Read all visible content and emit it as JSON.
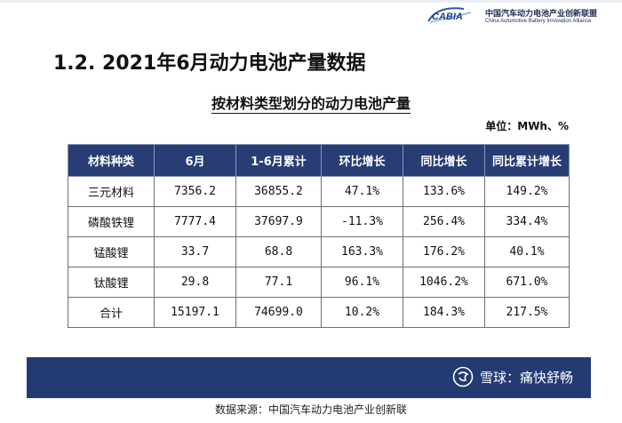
{
  "logo": {
    "mark": "CABIA",
    "cn": "中国汽车动力电池产业创新联盟",
    "en": "China Automotive Battery Innovation Alliance"
  },
  "heading": "1.2.  2021年6月动力电池产量数据",
  "subtitle": "按材料类型划分的动力电池产量",
  "unit": "单位：MWh、%",
  "table": {
    "headers": [
      "材料种类",
      "6月",
      "1-6月累计",
      "环比增长",
      "同比增长",
      "同比累计增长"
    ],
    "rows": [
      [
        "三元材料",
        "7356.2",
        "36855.2",
        "47.1%",
        "133.6%",
        "149.2%"
      ],
      [
        "磷酸铁锂",
        "7777.4",
        "37697.9",
        "-11.3%",
        "256.4%",
        "334.4%"
      ],
      [
        "锰酸锂",
        "33.7",
        "68.8",
        "163.3%",
        "176.2%",
        "40.1%"
      ],
      [
        "钛酸锂",
        "29.8",
        "77.1",
        "96.1%",
        "1046.2%",
        "671.0%"
      ],
      [
        "合计",
        "15197.1",
        "74699.0",
        "10.2%",
        "184.3%",
        "217.5%"
      ]
    ]
  },
  "banner": {
    "text": "雪球：痛快舒畅"
  },
  "source": "数据来源：中国汽车动力电池产业创新联"
}
